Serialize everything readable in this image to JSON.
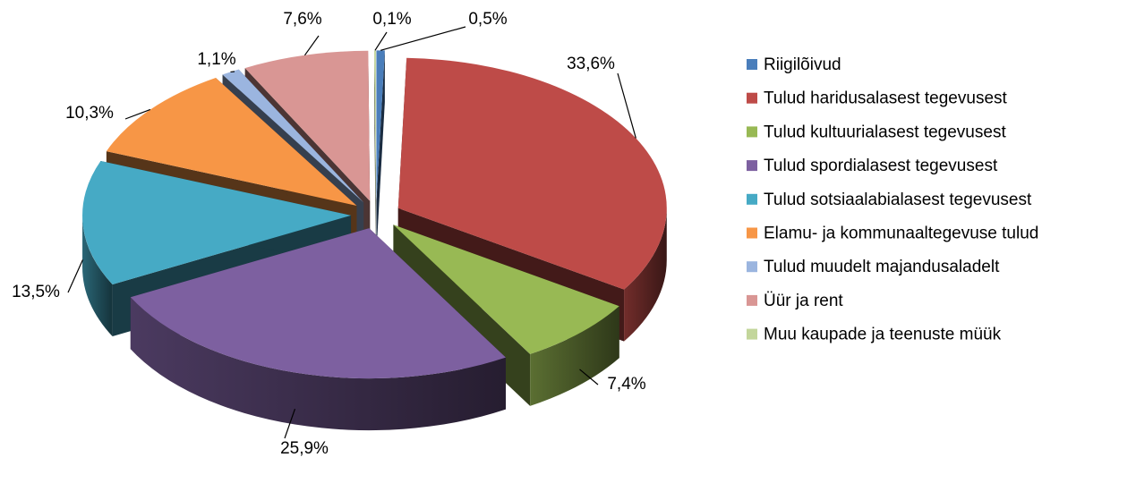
{
  "chart_data": {
    "type": "pie3d",
    "categories": [
      "Riigilõivud",
      "Tulud haridusalasest tegevusest",
      "Tulud kultuurialasest tegevusest",
      "Tulud spordialasest tegevusest",
      "Tulud sotsiaalabialasest tegevusest",
      "Elamu- ja kommunaaltegevuse tulud",
      "Tulud muudelt majandusaladelt",
      "Üür ja rent",
      "Muu kaupade ja teenuste müük"
    ],
    "values": [
      0.5,
      33.6,
      7.4,
      25.9,
      13.5,
      10.3,
      1.1,
      7.6,
      0.1
    ],
    "value_labels": [
      "0,5%",
      "33,6%",
      "7,4%",
      "25,9%",
      "13,5%",
      "10,3%",
      "1,1%",
      "7,6%",
      "0,1%"
    ],
    "colors": [
      "#4a7ebb",
      "#be4b48",
      "#98b954",
      "#7d60a0",
      "#46aac5",
      "#f79646",
      "#9bb5df",
      "#d99694",
      "#c3d69b"
    ],
    "legend": "right"
  }
}
